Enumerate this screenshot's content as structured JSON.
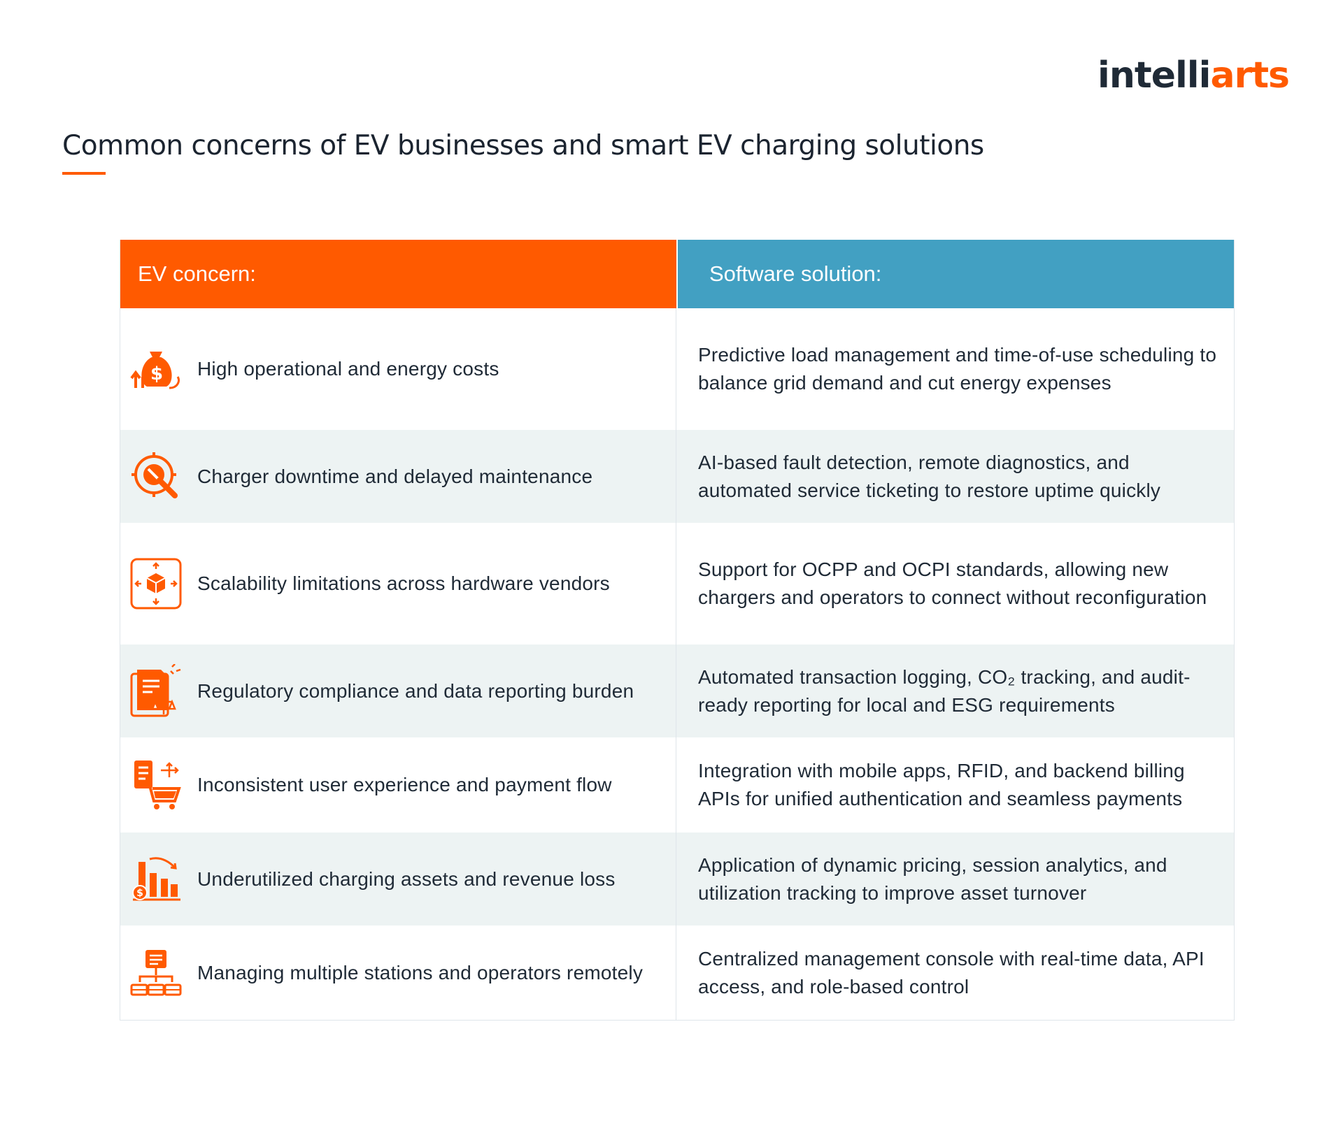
{
  "brand": {
    "logo_part1": "intelli",
    "logo_part2": "arts",
    "accent_color": "#ff5a00",
    "secondary_color": "#42a0c2"
  },
  "title": "Common concerns of EV businesses and smart EV charging solutions",
  "table": {
    "header_concern": "EV concern:",
    "header_solution": "Software solution:",
    "rows": [
      {
        "icon": "money-bag-icon",
        "concern": "High operational and energy costs",
        "solution": "Predictive load management and time-of-use scheduling to balance grid demand and cut energy expenses"
      },
      {
        "icon": "maintenance-wrench-icon",
        "concern": "Charger downtime and delayed maintenance",
        "solution": "AI-based fault detection, remote diagnostics, and automated service ticketing to restore uptime quickly"
      },
      {
        "icon": "scalability-cube-icon",
        "concern": "Scalability limitations across hardware vendors",
        "solution": "Support for OCPP and OCPI standards, allowing new chargers and operators to connect without reconfiguration"
      },
      {
        "icon": "compliance-document-icon",
        "concern": "Regulatory compliance and data reporting burden",
        "solution": "Automated transaction logging, CO₂ tracking, and audit-ready reporting for local and ESG requirements"
      },
      {
        "icon": "payment-cart-icon",
        "concern": "Inconsistent user experience and payment flow",
        "solution": "Integration with mobile apps, RFID, and backend billing APIs for unified authentication and seamless payments"
      },
      {
        "icon": "revenue-loss-chart-icon",
        "concern": "Underutilized charging assets and revenue loss",
        "solution": "Application of dynamic pricing, session analytics, and utilization tracking to improve asset turnover"
      },
      {
        "icon": "network-stations-icon",
        "concern": "Managing multiple stations and operators remotely",
        "solution": "Centralized management console with real-time data, API access, and role-based control"
      }
    ]
  }
}
